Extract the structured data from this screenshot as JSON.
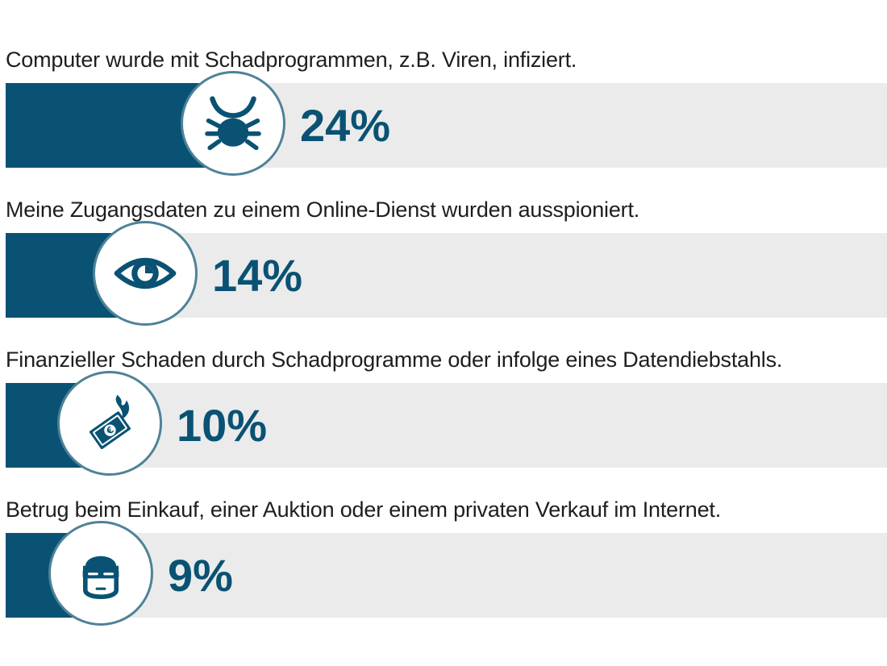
{
  "chart_data": {
    "type": "bar",
    "orientation": "horizontal",
    "value_unit": "%",
    "xlim": [
      0,
      100
    ],
    "grid": false,
    "categories": [
      "Computer wurde mit Schadprogrammen, z.B. Viren, infiziert.",
      "Meine Zugangsdaten zu einem Online-Dienst wurden ausspioniert.",
      "Finanzieller Schaden durch Schadprogramme oder infolge eines Datendiebstahls.",
      "Betrug beim Einkauf, einer Auktion oder einem privaten Verkauf im Internet."
    ],
    "values": [
      24,
      14,
      10,
      9
    ],
    "value_labels": [
      "24%",
      "14%",
      "10%",
      "9%"
    ],
    "icons": [
      "bug-icon",
      "eye-icon",
      "burning-money-icon",
      "masked-thief-icon"
    ]
  },
  "colors": {
    "bar_fill": "#0a5273",
    "track": "#ebebeb",
    "badge_border": "#4e8298",
    "value_text": "#0a5273",
    "label_text": "#1e1e1e"
  }
}
